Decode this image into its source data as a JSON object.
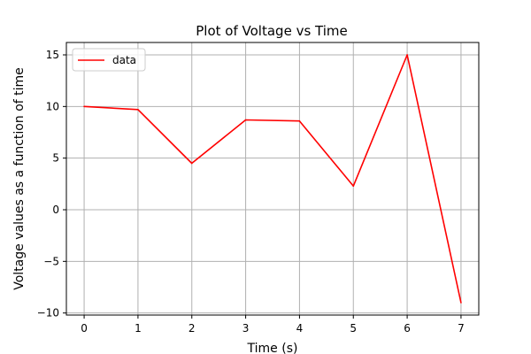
{
  "chart_data": {
    "type": "line",
    "title": "Plot of Voltage vs Time",
    "xlabel": "Time (s)",
    "ylabel": "Voltage values as a function of time",
    "xlim": [
      -0.33,
      7.33
    ],
    "ylim": [
      -10.2,
      16.2
    ],
    "xticks": [
      0,
      1,
      2,
      3,
      4,
      5,
      6,
      7
    ],
    "yticks": [
      -10,
      -5,
      0,
      5,
      10,
      15
    ],
    "grid": true,
    "legend_position": "top-left",
    "series": [
      {
        "name": "data",
        "color": "#ff0000",
        "x": [
          0,
          1,
          2,
          3,
          4,
          5,
          6,
          7
        ],
        "y": [
          10.0,
          9.7,
          4.5,
          8.7,
          8.6,
          2.3,
          15.0,
          -9.0
        ]
      }
    ]
  }
}
